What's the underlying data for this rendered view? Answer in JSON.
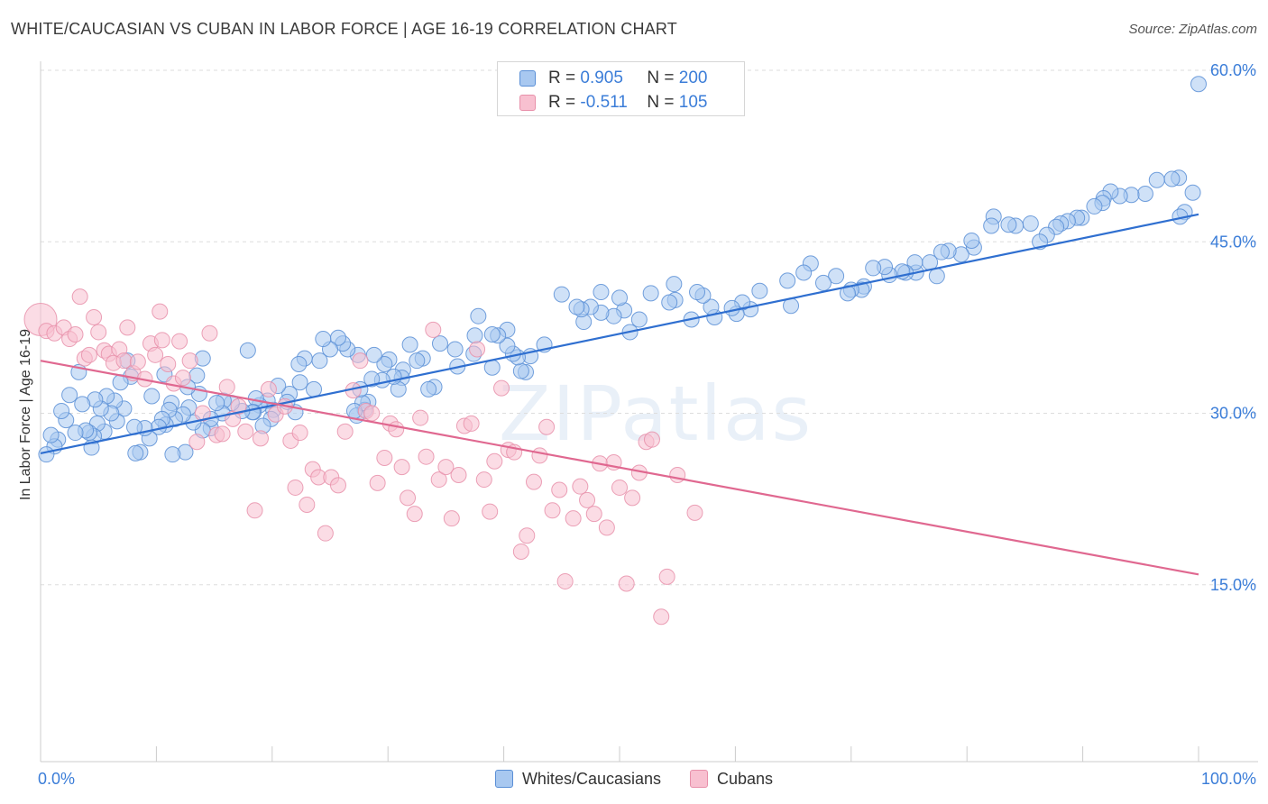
{
  "title": "WHITE/CAUCASIAN VS CUBAN IN LABOR FORCE | AGE 16-19 CORRELATION CHART",
  "source": "Source: ZipAtlas.com",
  "watermark": "ZIPatlas",
  "legend_top": [
    {
      "r_label": "R =",
      "r_value": "0.905",
      "n_label": "N =",
      "n_value": "200"
    },
    {
      "r_label": "R =",
      "r_value": "-0.511",
      "n_label": "N =",
      "n_value": "105"
    }
  ],
  "colors": {
    "blue_fill": "#a8c8f0",
    "blue_stroke": "#5a8fd6",
    "blue_line": "#2f6fd0",
    "pink_fill": "#f8c0d0",
    "pink_stroke": "#e890aa",
    "pink_line": "#e06890",
    "tick_text": "#3b7dd8",
    "grid": "#dddddd"
  },
  "chart_data": {
    "type": "scatter",
    "xlabel": "",
    "ylabel": "In Labor Force | Age 16-19",
    "xlim": [
      0,
      100
    ],
    "ylim": [
      0,
      60
    ],
    "x_tick_labels": [
      "0.0%",
      "100.0%"
    ],
    "y_ticks": [
      15,
      30,
      45,
      60
    ],
    "y_tick_labels": [
      "15.0%",
      "30.0%",
      "45.0%",
      "60.0%"
    ],
    "grid": true,
    "legend_position": "top-center",
    "series": [
      {
        "name": "Whites/Caucasians",
        "color": "#a8c8f0",
        "r": 0.905,
        "n": 200,
        "trend": {
          "x": [
            0,
            100
          ],
          "y": [
            26.5,
            47.4
          ]
        },
        "points": [
          [
            100,
            58.8
          ],
          [
            99.5,
            49.3
          ],
          [
            98.8,
            47.6
          ],
          [
            98.4,
            47.2
          ],
          [
            98.3,
            50.6
          ],
          [
            97.7,
            50.5
          ],
          [
            96.4,
            50.4
          ],
          [
            95.4,
            49.2
          ],
          [
            94.2,
            49.1
          ],
          [
            93.2,
            49.0
          ],
          [
            92.4,
            49.4
          ],
          [
            91.8,
            48.8
          ],
          [
            91.7,
            48.4
          ],
          [
            91.0,
            48.1
          ],
          [
            89.9,
            47.1
          ],
          [
            89.5,
            47.1
          ],
          [
            88.7,
            46.8
          ],
          [
            88.1,
            46.6
          ],
          [
            87.7,
            46.3
          ],
          [
            86.9,
            45.6
          ],
          [
            86.3,
            45.0
          ],
          [
            85.5,
            46.6
          ],
          [
            84.2,
            46.4
          ],
          [
            83.6,
            46.5
          ],
          [
            82.3,
            47.2
          ],
          [
            82.1,
            46.4
          ],
          [
            80.6,
            44.5
          ],
          [
            80.4,
            45.1
          ],
          [
            79.5,
            43.9
          ],
          [
            78.4,
            44.2
          ],
          [
            77.8,
            44.1
          ],
          [
            77.4,
            42.0
          ],
          [
            76.8,
            43.2
          ],
          [
            75.6,
            42.3
          ],
          [
            75.5,
            43.2
          ],
          [
            74.7,
            42.3
          ],
          [
            74.4,
            42.4
          ],
          [
            73.3,
            42.1
          ],
          [
            72.9,
            42.8
          ],
          [
            71.9,
            42.7
          ],
          [
            71.1,
            41.1
          ],
          [
            70.9,
            40.8
          ],
          [
            70.0,
            40.8
          ],
          [
            69.7,
            40.5
          ],
          [
            68.7,
            42.0
          ],
          [
            67.6,
            41.4
          ],
          [
            66.5,
            43.1
          ],
          [
            65.9,
            42.3
          ],
          [
            64.8,
            39.4
          ],
          [
            64.5,
            41.6
          ],
          [
            62.1,
            40.7
          ],
          [
            61.3,
            39.1
          ],
          [
            60.6,
            39.7
          ],
          [
            60.1,
            38.7
          ],
          [
            59.7,
            39.2
          ],
          [
            58.2,
            38.4
          ],
          [
            57.9,
            39.3
          ],
          [
            57.2,
            40.3
          ],
          [
            56.7,
            40.6
          ],
          [
            56.2,
            38.2
          ],
          [
            54.8,
            39.9
          ],
          [
            54.7,
            41.3
          ],
          [
            54.3,
            39.7
          ],
          [
            52.7,
            40.5
          ],
          [
            51.7,
            38.2
          ],
          [
            50.9,
            37.1
          ],
          [
            50.4,
            39.0
          ],
          [
            50.0,
            40.1
          ],
          [
            49.5,
            38.5
          ],
          [
            48.4,
            38.8
          ],
          [
            48.4,
            40.6
          ],
          [
            47.5,
            39.3
          ],
          [
            46.9,
            38.0
          ],
          [
            46.7,
            39.1
          ],
          [
            46.3,
            39.3
          ],
          [
            45.0,
            40.4
          ],
          [
            43.5,
            36.0
          ],
          [
            42.3,
            35.0
          ],
          [
            41.9,
            33.6
          ],
          [
            41.5,
            33.7
          ],
          [
            41.2,
            34.9
          ],
          [
            40.8,
            35.2
          ],
          [
            40.3,
            35.9
          ],
          [
            40.3,
            37.3
          ],
          [
            39.5,
            36.8
          ],
          [
            39.0,
            36.9
          ],
          [
            39.0,
            34.0
          ],
          [
            37.8,
            38.5
          ],
          [
            37.5,
            36.8
          ],
          [
            37.4,
            35.2
          ],
          [
            36.0,
            34.1
          ],
          [
            35.8,
            35.6
          ],
          [
            34.5,
            36.1
          ],
          [
            34.0,
            32.3
          ],
          [
            33.5,
            32.1
          ],
          [
            33.0,
            34.8
          ],
          [
            32.5,
            34.6
          ],
          [
            31.9,
            36.0
          ],
          [
            31.3,
            33.8
          ],
          [
            31.2,
            33.1
          ],
          [
            30.9,
            32.1
          ],
          [
            30.5,
            33.2
          ],
          [
            30.1,
            34.7
          ],
          [
            29.7,
            34.3
          ],
          [
            29.5,
            32.9
          ],
          [
            28.8,
            35.1
          ],
          [
            28.6,
            33.0
          ],
          [
            28.3,
            31.0
          ],
          [
            28.0,
            30.3
          ],
          [
            27.8,
            30.9
          ],
          [
            27.6,
            32.1
          ],
          [
            27.4,
            35.1
          ],
          [
            27.3,
            29.8
          ],
          [
            27.1,
            30.2
          ],
          [
            26.5,
            35.6
          ],
          [
            26.1,
            36.1
          ],
          [
            25.7,
            36.6
          ],
          [
            25.0,
            35.6
          ],
          [
            24.4,
            36.5
          ],
          [
            24.1,
            34.6
          ],
          [
            23.6,
            32.1
          ],
          [
            22.8,
            34.8
          ],
          [
            22.4,
            32.7
          ],
          [
            22.3,
            34.3
          ],
          [
            22.0,
            30.1
          ],
          [
            21.5,
            31.7
          ],
          [
            21.3,
            31.0
          ],
          [
            20.5,
            32.4
          ],
          [
            20.1,
            30.3
          ],
          [
            19.9,
            29.5
          ],
          [
            19.6,
            31.1
          ],
          [
            19.2,
            28.9
          ],
          [
            18.9,
            30.7
          ],
          [
            18.6,
            31.3
          ],
          [
            18.4,
            30.1
          ],
          [
            18.3,
            30.1
          ],
          [
            17.9,
            35.5
          ],
          [
            17.4,
            30.2
          ],
          [
            16.5,
            30.9
          ],
          [
            15.8,
            31.1
          ],
          [
            15.7,
            30.0
          ],
          [
            15.2,
            30.9
          ],
          [
            14.7,
            28.7
          ],
          [
            14.7,
            29.5
          ],
          [
            14.0,
            28.5
          ],
          [
            14.0,
            34.8
          ],
          [
            13.7,
            31.7
          ],
          [
            13.5,
            33.3
          ],
          [
            13.2,
            29.2
          ],
          [
            12.8,
            30.5
          ],
          [
            12.7,
            32.3
          ],
          [
            12.5,
            26.6
          ],
          [
            12.3,
            29.9
          ],
          [
            11.6,
            29.5
          ],
          [
            11.4,
            26.4
          ],
          [
            11.3,
            30.9
          ],
          [
            11.1,
            30.3
          ],
          [
            10.8,
            29.0
          ],
          [
            10.7,
            33.4
          ],
          [
            10.5,
            29.5
          ],
          [
            10.2,
            28.8
          ],
          [
            9.6,
            31.5
          ],
          [
            9.4,
            27.8
          ],
          [
            9.0,
            28.7
          ],
          [
            8.6,
            26.6
          ],
          [
            8.2,
            26.5
          ],
          [
            8.1,
            28.8
          ],
          [
            7.8,
            33.2
          ],
          [
            7.5,
            34.6
          ],
          [
            7.2,
            30.4
          ],
          [
            6.9,
            32.7
          ],
          [
            6.6,
            29.3
          ],
          [
            6.4,
            31.1
          ],
          [
            6.1,
            30.0
          ],
          [
            5.7,
            31.5
          ],
          [
            5.5,
            28.4
          ],
          [
            5.2,
            30.4
          ],
          [
            4.9,
            29.1
          ],
          [
            4.7,
            31.2
          ],
          [
            4.6,
            28.0
          ],
          [
            4.4,
            27.0
          ],
          [
            4.2,
            28.3
          ],
          [
            3.9,
            28.5
          ],
          [
            3.6,
            30.8
          ],
          [
            3.3,
            33.6
          ],
          [
            3.0,
            28.3
          ],
          [
            2.5,
            31.6
          ],
          [
            2.2,
            29.4
          ],
          [
            1.8,
            30.2
          ],
          [
            1.5,
            27.7
          ],
          [
            1.2,
            27.1
          ],
          [
            0.9,
            28.1
          ],
          [
            0.5,
            26.4
          ]
        ]
      },
      {
        "name": "Cubans",
        "color": "#f8c0d0",
        "r": -0.511,
        "n": 105,
        "trend": {
          "x": [
            0,
            100
          ],
          "y": [
            34.6,
            15.9
          ]
        },
        "points": [
          [
            0,
            38.2
          ],
          [
            0.5,
            37.2
          ],
          [
            1.2,
            37.0
          ],
          [
            2.0,
            37.5
          ],
          [
            2.5,
            36.5
          ],
          [
            3.0,
            36.9
          ],
          [
            3.4,
            40.2
          ],
          [
            3.8,
            34.8
          ],
          [
            4.2,
            35.1
          ],
          [
            4.6,
            38.4
          ],
          [
            5.0,
            37.1
          ],
          [
            5.5,
            35.5
          ],
          [
            5.9,
            35.2
          ],
          [
            6.3,
            34.4
          ],
          [
            6.8,
            35.6
          ],
          [
            7.2,
            34.6
          ],
          [
            7.5,
            37.5
          ],
          [
            8.0,
            33.5
          ],
          [
            8.4,
            34.5
          ],
          [
            9.0,
            33.0
          ],
          [
            9.5,
            36.1
          ],
          [
            9.9,
            35.1
          ],
          [
            10.3,
            38.9
          ],
          [
            10.5,
            36.4
          ],
          [
            11.0,
            34.3
          ],
          [
            11.5,
            32.6
          ],
          [
            12.0,
            36.3
          ],
          [
            12.3,
            33.1
          ],
          [
            12.9,
            34.6
          ],
          [
            13.5,
            27.5
          ],
          [
            14.0,
            30.0
          ],
          [
            14.6,
            37.0
          ],
          [
            15.2,
            28.1
          ],
          [
            15.7,
            28.2
          ],
          [
            16.1,
            32.3
          ],
          [
            16.6,
            29.5
          ],
          [
            17.1,
            30.6
          ],
          [
            17.7,
            28.4
          ],
          [
            18.5,
            21.5
          ],
          [
            19.0,
            27.8
          ],
          [
            19.7,
            32.1
          ],
          [
            20.3,
            29.9
          ],
          [
            21.1,
            30.6
          ],
          [
            21.6,
            27.6
          ],
          [
            22.0,
            23.5
          ],
          [
            22.4,
            28.3
          ],
          [
            23.0,
            22.0
          ],
          [
            23.5,
            25.1
          ],
          [
            24.0,
            24.4
          ],
          [
            24.6,
            19.5
          ],
          [
            25.1,
            24.4
          ],
          [
            25.7,
            23.7
          ],
          [
            26.3,
            28.4
          ],
          [
            27.0,
            32.0
          ],
          [
            27.6,
            34.6
          ],
          [
            28.1,
            30.2
          ],
          [
            28.6,
            30.0
          ],
          [
            29.1,
            23.9
          ],
          [
            29.7,
            26.1
          ],
          [
            30.2,
            29.1
          ],
          [
            30.7,
            28.6
          ],
          [
            31.2,
            25.3
          ],
          [
            31.7,
            22.6
          ],
          [
            32.3,
            21.2
          ],
          [
            32.8,
            29.6
          ],
          [
            33.3,
            26.2
          ],
          [
            33.9,
            37.3
          ],
          [
            34.4,
            24.2
          ],
          [
            35.0,
            25.3
          ],
          [
            35.5,
            20.8
          ],
          [
            36.1,
            24.6
          ],
          [
            36.6,
            28.9
          ],
          [
            37.2,
            29.1
          ],
          [
            37.7,
            35.6
          ],
          [
            38.3,
            24.2
          ],
          [
            38.8,
            21.4
          ],
          [
            39.2,
            25.8
          ],
          [
            39.8,
            32.2
          ],
          [
            40.4,
            26.8
          ],
          [
            40.9,
            26.6
          ],
          [
            41.5,
            17.9
          ],
          [
            42.0,
            19.3
          ],
          [
            42.6,
            24.0
          ],
          [
            43.1,
            26.3
          ],
          [
            43.7,
            28.8
          ],
          [
            44.2,
            21.5
          ],
          [
            44.8,
            23.3
          ],
          [
            45.3,
            15.3
          ],
          [
            46.0,
            20.8
          ],
          [
            46.6,
            23.6
          ],
          [
            47.2,
            22.4
          ],
          [
            47.8,
            21.2
          ],
          [
            48.3,
            25.6
          ],
          [
            48.9,
            20.0
          ],
          [
            49.5,
            25.7
          ],
          [
            50.0,
            23.5
          ],
          [
            50.6,
            15.1
          ],
          [
            51.1,
            22.6
          ],
          [
            51.7,
            24.8
          ],
          [
            52.3,
            27.5
          ],
          [
            52.8,
            27.7
          ],
          [
            53.6,
            12.2
          ],
          [
            54.1,
            15.7
          ],
          [
            55.0,
            24.6
          ],
          [
            56.5,
            21.3
          ]
        ]
      }
    ]
  }
}
